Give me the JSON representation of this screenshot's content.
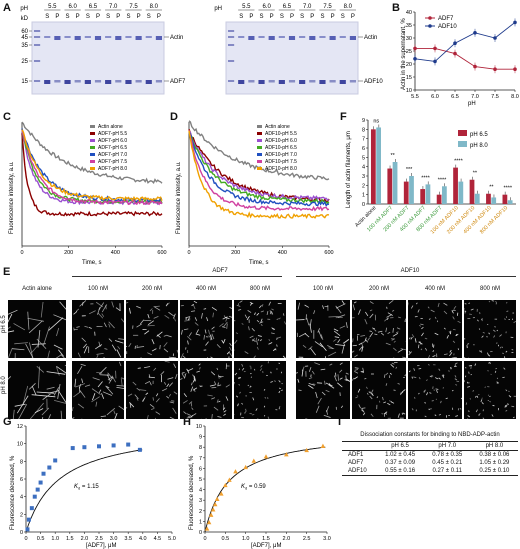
{
  "panels": {
    "A": "A",
    "B": "B",
    "C": "C",
    "D": "D",
    "E": "E",
    "F": "F",
    "G": "G",
    "H": "H",
    "I": "I"
  },
  "gels": {
    "ph_label": "pH",
    "kd_label": "kD",
    "ph_values": [
      "5.5",
      "6.0",
      "6.5",
      "7.0",
      "7.5",
      "8.0"
    ],
    "lane_labels": [
      "S",
      "P"
    ],
    "markers": [
      "60",
      "45",
      "35",
      "25",
      "15"
    ],
    "left_band_labels": [
      "Actin",
      "ADF7"
    ],
    "right_band_labels": [
      "Actin",
      "ADF10"
    ]
  },
  "chart_b": {
    "ylabel": "Actin in the supernatant, %",
    "xlabel": "pH",
    "legend": [
      "ADF7",
      "ADF10"
    ],
    "colors": [
      "#b0243a",
      "#1f3b8c"
    ],
    "chart_data": {
      "type": "line",
      "x": [
        5.5,
        6.0,
        6.5,
        7.0,
        7.5,
        8.0
      ],
      "series": [
        {
          "name": "ADF7",
          "values": [
            26,
            26,
            24,
            19,
            18,
            18
          ]
        },
        {
          "name": "ADF10",
          "values": [
            22,
            21,
            28,
            32,
            30,
            36
          ]
        }
      ],
      "ylim": [
        10,
        40
      ],
      "yticks": [
        "10",
        "15",
        "20",
        "25",
        "30",
        "35",
        "40"
      ],
      "xticks": [
        "5.5",
        "6.0",
        "6.5",
        "7.0",
        "7.5",
        "8.0"
      ]
    }
  },
  "chart_c": {
    "ylabel": "Fluorescence intensity, a.u.",
    "xlabel": "Time, s",
    "xticks": [
      "0",
      "200",
      "400",
      "600"
    ],
    "legend": [
      "Actin alone",
      "ADF7-pH 5.5",
      "ADF7-pH 6.0",
      "ADF7-pH 6.5",
      "ADF7-pH 7.0",
      "ADF7-pH 7.5",
      "ADF7-pH 8.0"
    ],
    "colors": [
      "#808080",
      "#8b0000",
      "#9a4fd0",
      "#44aa22",
      "#2050c0",
      "#d040a0",
      "#f0a000"
    ],
    "chart_data": {
      "type": "line",
      "x_range": [
        0,
        600
      ],
      "series": [
        {
          "name": "Actin alone",
          "start": 1.0,
          "end": 0.5,
          "tau": 180
        },
        {
          "name": "ADF7-pH 5.5",
          "start": 0.9,
          "end": 0.26,
          "tau": 25
        },
        {
          "name": "ADF7-pH 6.0",
          "start": 0.95,
          "end": 0.35,
          "tau": 50
        },
        {
          "name": "ADF7-pH 6.5",
          "start": 0.95,
          "end": 0.36,
          "tau": 60
        },
        {
          "name": "ADF7-pH 7.0",
          "start": 0.95,
          "end": 0.37,
          "tau": 90
        },
        {
          "name": "ADF7-pH 7.5",
          "start": 0.95,
          "end": 0.35,
          "tau": 70
        },
        {
          "name": "ADF7-pH 8.0",
          "start": 0.95,
          "end": 0.38,
          "tau": 80
        }
      ]
    }
  },
  "chart_d": {
    "ylabel": "Fluorescence intensity, a.u.",
    "xlabel": "Time, s",
    "xticks": [
      "0",
      "200",
      "400",
      "600"
    ],
    "legend": [
      "Actin alone",
      "ADF10-pH 5.5",
      "ADF10-pH 6.0",
      "ADF10-pH 6.5",
      "ADF10-pH 7.0",
      "ADF10-pH 7.5",
      "ADF10-pH 8.0"
    ],
    "colors": [
      "#808080",
      "#8b0000",
      "#9a4fd0",
      "#44aa22",
      "#2050c0",
      "#d040a0",
      "#f0a000"
    ],
    "chart_data": {
      "type": "line",
      "x_range": [
        0,
        600
      ],
      "series": [
        {
          "name": "Actin alone",
          "start": 1.0,
          "end": 0.52,
          "tau": 200
        },
        {
          "name": "ADF10-pH 5.5",
          "start": 0.93,
          "end": 0.36,
          "tau": 150
        },
        {
          "name": "ADF10-pH 6.0",
          "start": 0.93,
          "end": 0.38,
          "tau": 120
        },
        {
          "name": "ADF10-pH 6.5",
          "start": 0.93,
          "end": 0.36,
          "tau": 110
        },
        {
          "name": "ADF10-pH 7.0",
          "start": 0.93,
          "end": 0.34,
          "tau": 90
        },
        {
          "name": "ADF10-pH 7.5",
          "start": 0.93,
          "end": 0.3,
          "tau": 70
        },
        {
          "name": "ADF10-pH 8.0",
          "start": 0.93,
          "end": 0.24,
          "tau": 60
        }
      ]
    }
  },
  "chart_f": {
    "ylabel": "Length of actin filaments, μm",
    "legend": [
      "pH 6.5",
      "pH 8.0"
    ],
    "colors": [
      "#b0243a",
      "#7fb8c8"
    ],
    "yticks": [
      "0",
      "1",
      "2",
      "3",
      "4",
      "5",
      "6",
      "7",
      "8",
      "9"
    ],
    "category_colors": [
      "#111111",
      "#3a9a3a",
      "#3a9a3a",
      "#3a9a3a",
      "#3a9a3a",
      "#d08a10",
      "#d08a10",
      "#d08a10",
      "#d08a10"
    ],
    "significance": [
      "ns",
      "**",
      "***",
      "****",
      "****",
      "****",
      "**",
      "**",
      "****"
    ],
    "chart_data": {
      "type": "bar",
      "categories": [
        "Actin alone",
        "100 nM ADF7",
        "200 nM ADF7",
        "400 nM ADF7",
        "800 nM ADF7",
        "100 nM ADF10",
        "200 nM ADF10",
        "400 nM ADF10",
        "800 nM ADF10"
      ],
      "series": [
        {
          "name": "pH 6.5",
          "values": [
            8.0,
            3.8,
            2.4,
            1.6,
            1.0,
            3.9,
            2.6,
            1.1,
            1.0
          ]
        },
        {
          "name": "pH 8.0",
          "values": [
            8.2,
            4.5,
            3.0,
            2.1,
            1.9,
            2.4,
            1.1,
            0.7,
            0.4
          ]
        }
      ],
      "ylim": [
        0,
        9
      ]
    }
  },
  "micro": {
    "group1": "ADF7",
    "group2": "ADF10",
    "col_labels": [
      "Actin alone",
      "100 nM",
      "200 nM",
      "400 nM",
      "800 nM",
      "100 nM",
      "200 nM",
      "400 nM",
      "800 nM"
    ],
    "row_labels": [
      "pH 6.5",
      "pH 8.0"
    ]
  },
  "chart_g": {
    "ylabel": "Fluorescence decreased, %",
    "xlabel": "[ADF7], μM",
    "annotation": "K",
    "annotation_sub": "d",
    "annotation_value": " = 1.15",
    "color": "#3d6fc0",
    "xticks": [
      "0",
      "0.5",
      "1.0",
      "1.5",
      "2.0",
      "2.5",
      "3.0",
      "3.5",
      "4.0",
      "4.5",
      "5.0"
    ],
    "yticks": [
      "0",
      "2",
      "4",
      "6",
      "8",
      "10",
      "12"
    ],
    "chart_data": {
      "type": "scatter",
      "x": [
        0.05,
        0.1,
        0.2,
        0.3,
        0.4,
        0.5,
        0.6,
        0.8,
        1.0,
        1.6,
        2.0,
        2.5,
        3.0,
        3.5,
        3.9
      ],
      "y": [
        0.3,
        1.4,
        2.7,
        4.0,
        4.8,
        5.6,
        6.6,
        7.3,
        8.1,
        9.5,
        9.6,
        9.7,
        9.8,
        9.9,
        9.3
      ],
      "xlim": [
        0,
        5
      ],
      "ylim": [
        0,
        12
      ],
      "fit": {
        "bmax": 12.0,
        "kd": 1.15
      }
    }
  },
  "chart_h": {
    "ylabel": "Fluorescence decreased, %",
    "xlabel": "[ADF7], μM",
    "annotation": "K",
    "annotation_sub": "d",
    "annotation_value": " = 0.59",
    "color": "#f0a030",
    "xticks": [
      "0",
      "0.5",
      "1.0",
      "1.5",
      "2.0",
      "2.5",
      "3.0"
    ],
    "yticks": [
      "0",
      "1",
      "2",
      "3",
      "4",
      "5",
      "6",
      "7",
      "8",
      "9",
      "10"
    ],
    "chart_data": {
      "type": "scatter",
      "x": [
        0.05,
        0.1,
        0.15,
        0.2,
        0.25,
        0.3,
        0.4,
        0.5,
        0.6,
        0.75,
        1.0,
        1.2,
        1.5,
        2.0,
        2.5,
        2.9
      ],
      "y": [
        0.3,
        0.9,
        1.6,
        2.1,
        2.6,
        3.1,
        3.6,
        4.4,
        4.9,
        5.7,
        6.1,
        6.7,
        7.1,
        7.3,
        7.7,
        8.1
      ],
      "xlim": [
        0,
        3
      ],
      "ylim": [
        0,
        10
      ],
      "fit": {
        "bmax": 9.6,
        "kd": 0.59
      }
    }
  },
  "table_i": {
    "title": "Dissociation constants for binding to NBD-ADP-actin",
    "headers": [
      "",
      "pH 6.5",
      "pH 7.0",
      "pH 8.0"
    ],
    "rows": [
      [
        "ADF1",
        "1.02 ± 0.45",
        "0.78 ± 0.35",
        "0.38 ± 0.06"
      ],
      [
        "ADF7",
        "0.37 ± 0.09",
        "0.45 ± 0.21",
        "1.05 ± 0.29"
      ],
      [
        "ADF10",
        "0.55 ± 0.16",
        "0.27 ± 0.11",
        "0.25 ± 0.10"
      ]
    ]
  }
}
